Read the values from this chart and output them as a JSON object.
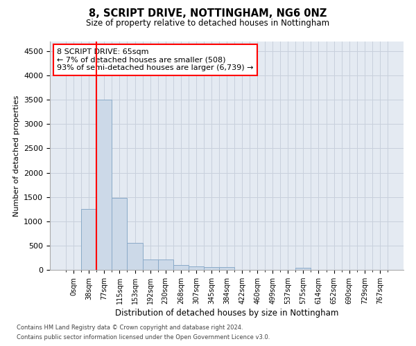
{
  "title": "8, SCRIPT DRIVE, NOTTINGHAM, NG6 0NZ",
  "subtitle": "Size of property relative to detached houses in Nottingham",
  "xlabel": "Distribution of detached houses by size in Nottingham",
  "ylabel": "Number of detached properties",
  "footnote1": "Contains HM Land Registry data © Crown copyright and database right 2024.",
  "footnote2": "Contains public sector information licensed under the Open Government Licence v3.0.",
  "bin_labels": [
    "0sqm",
    "38sqm",
    "77sqm",
    "115sqm",
    "153sqm",
    "192sqm",
    "230sqm",
    "268sqm",
    "307sqm",
    "345sqm",
    "384sqm",
    "422sqm",
    "460sqm",
    "499sqm",
    "537sqm",
    "575sqm",
    "614sqm",
    "652sqm",
    "690sqm",
    "729sqm",
    "767sqm"
  ],
  "bar_values": [
    5,
    1250,
    3500,
    1480,
    560,
    220,
    210,
    105,
    75,
    55,
    50,
    0,
    0,
    0,
    0,
    45,
    0,
    0,
    0,
    0,
    0
  ],
  "bar_color": "#ccd9e8",
  "bar_edgecolor": "#8aaac8",
  "grid_color": "#c8d0dc",
  "background_color": "#e4eaf2",
  "red_line_x": 1.5,
  "annotation_line1": "8 SCRIPT DRIVE: 65sqm",
  "annotation_line2": "← 7% of detached houses are smaller (508)",
  "annotation_line3": "93% of semi-detached houses are larger (6,739) →",
  "ylim": [
    0,
    4700
  ],
  "yticks": [
    0,
    500,
    1000,
    1500,
    2000,
    2500,
    3000,
    3500,
    4000,
    4500
  ]
}
